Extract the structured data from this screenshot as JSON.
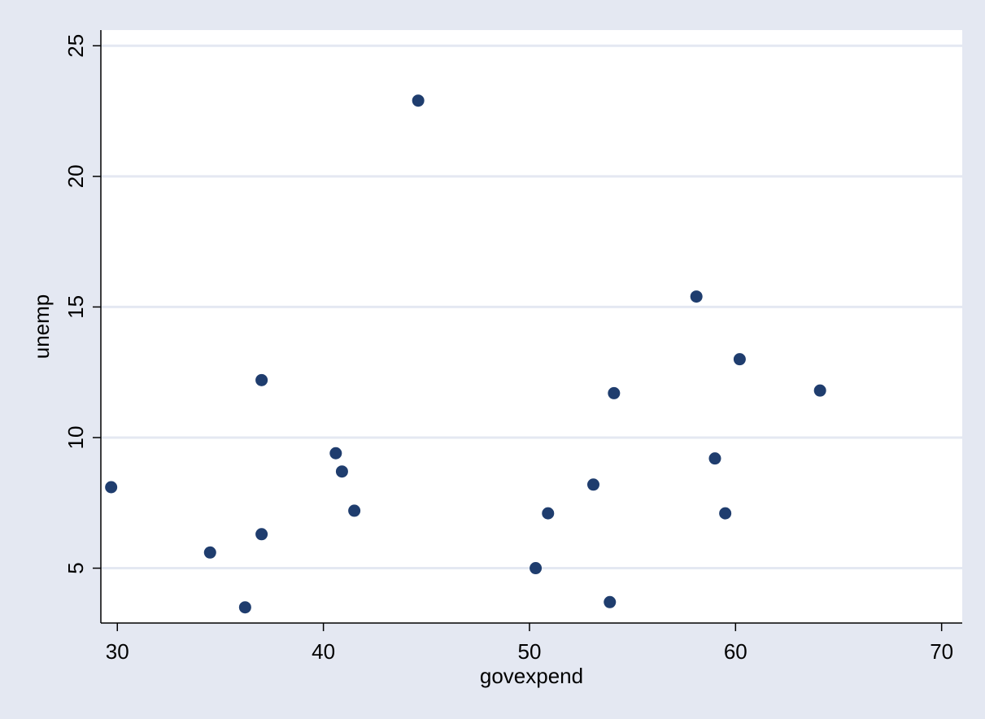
{
  "chart_data": {
    "type": "scatter",
    "title": "",
    "xlabel": "govexpend",
    "ylabel": "unemp",
    "xlim": [
      29.2,
      71
    ],
    "ylim": [
      2.9,
      25.6
    ],
    "x_ticks": [
      30,
      40,
      50,
      60,
      70
    ],
    "y_ticks": [
      5,
      10,
      15,
      20,
      25
    ],
    "grid": "horizontal",
    "legend": "none",
    "colors": {
      "background": "#e4e8f2",
      "plot_area": "#ffffff",
      "gridline": "#e4e8f2",
      "marker": "#1f3d6e",
      "axis": "#000000"
    },
    "points": [
      {
        "x": 29.7,
        "y": 8.1
      },
      {
        "x": 34.5,
        "y": 5.6
      },
      {
        "x": 36.2,
        "y": 3.5
      },
      {
        "x": 37.0,
        "y": 6.3
      },
      {
        "x": 37.0,
        "y": 12.2
      },
      {
        "x": 40.6,
        "y": 9.4
      },
      {
        "x": 40.9,
        "y": 8.7
      },
      {
        "x": 41.5,
        "y": 7.2
      },
      {
        "x": 44.6,
        "y": 22.9
      },
      {
        "x": 50.3,
        "y": 5.0
      },
      {
        "x": 50.9,
        "y": 7.1
      },
      {
        "x": 53.1,
        "y": 8.2
      },
      {
        "x": 53.9,
        "y": 3.7
      },
      {
        "x": 54.1,
        "y": 11.7
      },
      {
        "x": 58.1,
        "y": 15.4
      },
      {
        "x": 59.0,
        "y": 9.2
      },
      {
        "x": 59.5,
        "y": 7.1
      },
      {
        "x": 60.2,
        "y": 13.0
      },
      {
        "x": 64.1,
        "y": 11.8
      }
    ]
  }
}
